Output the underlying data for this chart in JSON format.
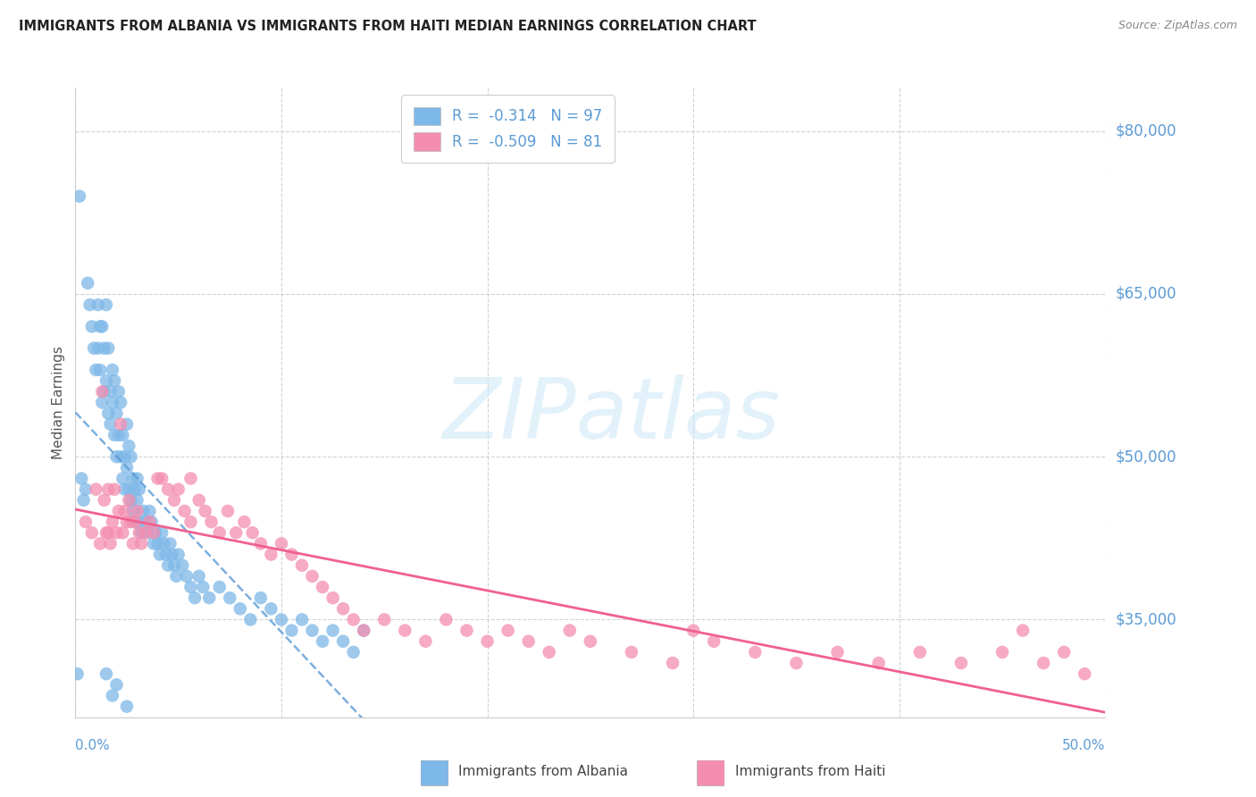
{
  "title": "IMMIGRANTS FROM ALBANIA VS IMMIGRANTS FROM HAITI MEDIAN EARNINGS CORRELATION CHART",
  "source": "Source: ZipAtlas.com",
  "ylabel": "Median Earnings",
  "yticks": [
    35000,
    50000,
    65000,
    80000
  ],
  "ytick_labels": [
    "$35,000",
    "$50,000",
    "$65,000",
    "$80,000"
  ],
  "ylim": [
    26000,
    84000
  ],
  "xlim": [
    0.0,
    0.5
  ],
  "color_albania": "#7EB8E8",
  "color_haiti": "#F48EB0",
  "color_axis_labels": "#5B9BD5",
  "color_regression_albania": "#5B9BD5",
  "color_regression_haiti": "#F06090",
  "watermark": "ZIPatlas",
  "albania_R": -0.314,
  "albania_N": 97,
  "haiti_R": -0.509,
  "haiti_N": 81,
  "albania_x": [
    0.001,
    0.002,
    0.003,
    0.004,
    0.005,
    0.006,
    0.007,
    0.008,
    0.009,
    0.01,
    0.011,
    0.011,
    0.012,
    0.012,
    0.013,
    0.013,
    0.014,
    0.014,
    0.015,
    0.015,
    0.016,
    0.016,
    0.017,
    0.017,
    0.018,
    0.018,
    0.019,
    0.019,
    0.02,
    0.02,
    0.021,
    0.021,
    0.022,
    0.022,
    0.023,
    0.023,
    0.024,
    0.024,
    0.025,
    0.025,
    0.026,
    0.026,
    0.027,
    0.027,
    0.028,
    0.028,
    0.029,
    0.029,
    0.03,
    0.03,
    0.031,
    0.031,
    0.032,
    0.033,
    0.034,
    0.035,
    0.036,
    0.037,
    0.038,
    0.039,
    0.04,
    0.041,
    0.042,
    0.043,
    0.044,
    0.045,
    0.046,
    0.047,
    0.048,
    0.049,
    0.05,
    0.052,
    0.054,
    0.056,
    0.058,
    0.06,
    0.062,
    0.065,
    0.07,
    0.075,
    0.08,
    0.085,
    0.09,
    0.095,
    0.1,
    0.105,
    0.11,
    0.115,
    0.12,
    0.125,
    0.13,
    0.135,
    0.14,
    0.015,
    0.02,
    0.018,
    0.025
  ],
  "albania_y": [
    30000,
    74000,
    48000,
    46000,
    47000,
    66000,
    64000,
    62000,
    60000,
    58000,
    64000,
    60000,
    62000,
    58000,
    55000,
    62000,
    56000,
    60000,
    57000,
    64000,
    54000,
    60000,
    56000,
    53000,
    58000,
    55000,
    52000,
    57000,
    54000,
    50000,
    56000,
    52000,
    50000,
    55000,
    48000,
    52000,
    50000,
    47000,
    49000,
    53000,
    47000,
    51000,
    46000,
    50000,
    48000,
    45000,
    47000,
    44000,
    46000,
    48000,
    44000,
    47000,
    43000,
    45000,
    44000,
    43000,
    45000,
    44000,
    42000,
    43000,
    42000,
    41000,
    43000,
    42000,
    41000,
    40000,
    42000,
    41000,
    40000,
    39000,
    41000,
    40000,
    39000,
    38000,
    37000,
    39000,
    38000,
    37000,
    38000,
    37000,
    36000,
    35000,
    37000,
    36000,
    35000,
    34000,
    35000,
    34000,
    33000,
    34000,
    33000,
    32000,
    34000,
    30000,
    29000,
    28000,
    27000
  ],
  "haiti_x": [
    0.005,
    0.008,
    0.01,
    0.012,
    0.013,
    0.014,
    0.015,
    0.016,
    0.017,
    0.018,
    0.019,
    0.02,
    0.021,
    0.022,
    0.023,
    0.024,
    0.025,
    0.026,
    0.027,
    0.028,
    0.029,
    0.03,
    0.031,
    0.032,
    0.034,
    0.036,
    0.038,
    0.04,
    0.042,
    0.045,
    0.048,
    0.05,
    0.053,
    0.056,
    0.06,
    0.063,
    0.066,
    0.07,
    0.074,
    0.078,
    0.082,
    0.086,
    0.09,
    0.095,
    0.1,
    0.105,
    0.11,
    0.115,
    0.12,
    0.125,
    0.13,
    0.135,
    0.14,
    0.15,
    0.16,
    0.17,
    0.18,
    0.19,
    0.2,
    0.21,
    0.22,
    0.23,
    0.24,
    0.25,
    0.27,
    0.29,
    0.31,
    0.33,
    0.35,
    0.37,
    0.39,
    0.41,
    0.43,
    0.45,
    0.47,
    0.48,
    0.49,
    0.016,
    0.056,
    0.3,
    0.46
  ],
  "haiti_y": [
    44000,
    43000,
    47000,
    42000,
    56000,
    46000,
    43000,
    47000,
    42000,
    44000,
    47000,
    43000,
    45000,
    53000,
    43000,
    45000,
    44000,
    46000,
    44000,
    42000,
    44000,
    45000,
    43000,
    42000,
    43000,
    44000,
    43000,
    48000,
    48000,
    47000,
    46000,
    47000,
    45000,
    44000,
    46000,
    45000,
    44000,
    43000,
    45000,
    43000,
    44000,
    43000,
    42000,
    41000,
    42000,
    41000,
    40000,
    39000,
    38000,
    37000,
    36000,
    35000,
    34000,
    35000,
    34000,
    33000,
    35000,
    34000,
    33000,
    34000,
    33000,
    32000,
    34000,
    33000,
    32000,
    31000,
    33000,
    32000,
    31000,
    32000,
    31000,
    32000,
    31000,
    32000,
    31000,
    32000,
    30000,
    43000,
    48000,
    34000,
    34000
  ]
}
